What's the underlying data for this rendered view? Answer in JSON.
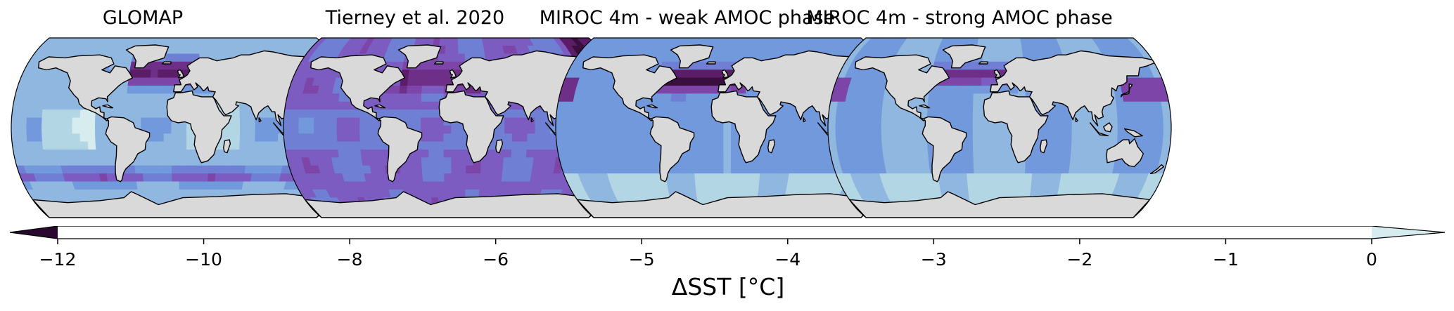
{
  "panels": [
    {
      "title": "GLOMAP",
      "field": "glomap"
    },
    {
      "title": "Tierney et al. 2020",
      "field": "tierney"
    },
    {
      "title": "MIROC 4m - weak AMOC phase",
      "field": "weak"
    },
    {
      "title": "MIROC 4m - strong AMOC phase",
      "field": "strong"
    }
  ],
  "colorbar": {
    "label": "ΔSST [°C]",
    "ticks": [
      "−12",
      "−10",
      "−8",
      "−6",
      "−5",
      "−4",
      "−3",
      "−2",
      "−1",
      "0"
    ],
    "boundaries": [
      -12,
      -10,
      -8,
      -6,
      -5,
      -4,
      -3,
      -2,
      -1,
      0
    ],
    "colors": [
      "#3a0f3f",
      "#5c1d68",
      "#6e2f88",
      "#7d45a8",
      "#7c5cc0",
      "#6f80d4",
      "#7199dc",
      "#8fb7df",
      "#b3d6e4"
    ],
    "extend_min_color": "#2a0830",
    "extend_max_color": "#d7ecef"
  },
  "land_color": "#d9d9d9"
}
